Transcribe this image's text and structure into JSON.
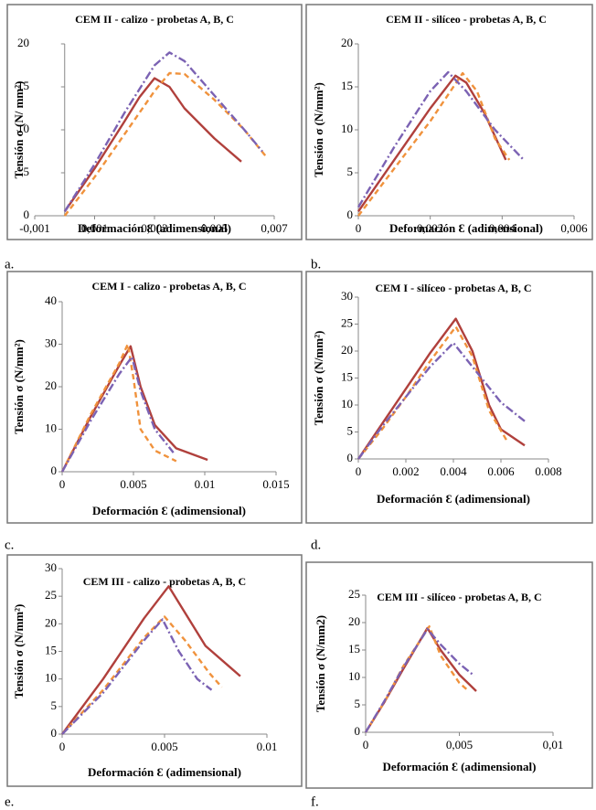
{
  "chart_data": [
    {
      "type": "line",
      "title": "CEM II - calizo - probetas A, B, C",
      "caption": "a.",
      "x_label": "Deformación Ɛ (adimensional)",
      "y_label": "Tensión σ (N/ mm²)",
      "xlim": [
        -0.001,
        0.007
      ],
      "xticks": [
        {
          "value": -0.001,
          "label": "-0,001"
        },
        {
          "value": 0.001,
          "label": "0,001"
        },
        {
          "value": 0.003,
          "label": "0,003"
        },
        {
          "value": 0.005,
          "label": "0,005"
        },
        {
          "value": 0.007,
          "label": "0,007"
        }
      ],
      "ylim": [
        0,
        20
      ],
      "yticks": [
        0,
        5,
        10,
        15,
        20
      ],
      "series": [
        {
          "color": "#b0403c",
          "dash": "solid",
          "x": [
            0,
            0.001,
            0.002,
            0.0025,
            0.003,
            0.0035,
            0.004,
            0.005,
            0.0059
          ],
          "values": [
            0.5,
            5.5,
            11,
            13.8,
            16,
            15,
            12.5,
            9,
            6.3
          ]
        },
        {
          "color": "#f0923c",
          "dash": "dashed",
          "x": [
            0,
            0.001,
            0.002,
            0.003,
            0.0035,
            0.004,
            0.005,
            0.006,
            0.0067
          ],
          "values": [
            0,
            4.5,
            9.5,
            14.5,
            16.6,
            16.5,
            13.5,
            10,
            7
          ]
        },
        {
          "color": "#7b62b3",
          "dash": "dashdot",
          "x": [
            0,
            0.001,
            0.002,
            0.003,
            0.0035,
            0.004,
            0.005,
            0.006,
            0.0066
          ],
          "values": [
            0.5,
            6,
            12,
            17.5,
            19,
            18,
            14,
            10,
            7.5
          ]
        }
      ]
    },
    {
      "type": "line",
      "title": "CEM II - silíceo - probetas A, B, C",
      "caption": "b.",
      "x_label": "Deformación Ɛ (adimensional)",
      "y_label": "Tensión σ (N/mm²)",
      "xlim": [
        0,
        0.006
      ],
      "xticks": [
        0,
        {
          "value": 0.002,
          "label": "0,002"
        },
        {
          "value": 0.004,
          "label": "0,004"
        },
        {
          "value": 0.006,
          "label": "0,006"
        }
      ],
      "ylim": [
        0,
        20
      ],
      "yticks": [
        0,
        5,
        10,
        15,
        20
      ],
      "series": [
        {
          "color": "#b0403c",
          "dash": "solid",
          "x": [
            0,
            0.001,
            0.002,
            0.0027,
            0.003,
            0.0035,
            0.0041
          ],
          "values": [
            0.5,
            6.5,
            12.5,
            16.3,
            15.5,
            12,
            6.5
          ]
        },
        {
          "color": "#f0923c",
          "dash": "dashed",
          "x": [
            0,
            0.001,
            0.002,
            0.0029,
            0.0033,
            0.0038,
            0.0042
          ],
          "values": [
            0,
            5.5,
            11,
            16.6,
            14.5,
            9,
            6.5
          ]
        },
        {
          "color": "#7b62b3",
          "dash": "dashdot",
          "x": [
            0,
            0.001,
            0.002,
            0.0025,
            0.003,
            0.0038,
            0.0046
          ],
          "values": [
            1,
            8,
            14.5,
            16.7,
            14.5,
            10,
            6.5
          ]
        }
      ]
    },
    {
      "type": "line",
      "title": "CEM I - calizo - probetas A, B, C",
      "caption": "c.",
      "x_label": "Deformación Ɛ (adimensional)",
      "y_label": "Tensión σ (N/mm²)",
      "xlim": [
        0,
        0.015
      ],
      "xticks": [
        0,
        0.005,
        0.01,
        0.015
      ],
      "ylim": [
        0,
        40
      ],
      "yticks": [
        0,
        10,
        20,
        30,
        40
      ],
      "series": [
        {
          "color": "#b0403c",
          "dash": "solid",
          "x": [
            0,
            0.002,
            0.004,
            0.0048,
            0.0055,
            0.0065,
            0.008,
            0.0102
          ],
          "values": [
            0,
            13,
            25,
            29.5,
            20,
            11,
            5.5,
            2.8
          ]
        },
        {
          "color": "#f0923c",
          "dash": "dashed",
          "x": [
            0,
            0.002,
            0.004,
            0.0046,
            0.005,
            0.0055,
            0.0065,
            0.008
          ],
          "values": [
            0,
            13.5,
            25.5,
            30,
            22,
            10,
            5,
            2.5
          ]
        },
        {
          "color": "#7b62b3",
          "dash": "dashdot",
          "x": [
            0,
            0.002,
            0.004,
            0.0049,
            0.0055,
            0.0065,
            0.0078
          ],
          "values": [
            0,
            12,
            23,
            27,
            19,
            10,
            4.5
          ]
        }
      ]
    },
    {
      "type": "line",
      "title": "CEM I - silíceo - probetas A, B, C",
      "caption": "d.",
      "x_label": "Deformación Ɛ (adimensional)",
      "y_label": "Tensión σ (N/mm²)",
      "xlim": [
        0,
        0.008
      ],
      "xticks": [
        0,
        0.002,
        0.004,
        0.006,
        0.008
      ],
      "ylim": [
        0,
        30
      ],
      "yticks": [
        0,
        5,
        10,
        15,
        20,
        25,
        30
      ],
      "series": [
        {
          "color": "#b0403c",
          "dash": "solid",
          "x": [
            0,
            0.001,
            0.002,
            0.003,
            0.0041,
            0.0048,
            0.0055,
            0.006,
            0.007
          ],
          "values": [
            0,
            6.5,
            13,
            19.5,
            26,
            20,
            10,
            5.5,
            2.5
          ]
        },
        {
          "color": "#f0923c",
          "dash": "dashed",
          "x": [
            0,
            0.001,
            0.002,
            0.003,
            0.0041,
            0.0048,
            0.0055,
            0.0063
          ],
          "values": [
            0,
            5.5,
            11.5,
            18,
            24.5,
            19,
            9,
            3
          ]
        },
        {
          "color": "#7b62b3",
          "dash": "dashdot",
          "x": [
            0,
            0.001,
            0.002,
            0.003,
            0.004,
            0.005,
            0.006,
            0.007
          ],
          "values": [
            0,
            6,
            11.5,
            17,
            21.5,
            16,
            10.5,
            7
          ]
        }
      ]
    },
    {
      "type": "line",
      "title": "CEM III - calizo - probetas A, B, C",
      "caption": "e.",
      "x_label": "Deformación Ɛ (adimensional)",
      "y_label": "Tensión σ (N/mm²)",
      "xlim": [
        0,
        0.01
      ],
      "xticks": [
        0,
        0.005,
        0.01
      ],
      "ylim": [
        0,
        30
      ],
      "yticks": [
        0,
        5,
        10,
        15,
        20,
        25,
        30
      ],
      "series": [
        {
          "color": "#b0403c",
          "dash": "solid",
          "x": [
            0,
            0.002,
            0.004,
            0.0052,
            0.006,
            0.007,
            0.0087
          ],
          "values": [
            0,
            10,
            21,
            26.8,
            22,
            16,
            10.5
          ]
        },
        {
          "color": "#f0923c",
          "dash": "dashed",
          "x": [
            0,
            0.002,
            0.004,
            0.005,
            0.006,
            0.0072,
            0.0078
          ],
          "values": [
            0,
            8,
            17.5,
            21.3,
            17,
            11,
            8.5
          ]
        },
        {
          "color": "#7b62b3",
          "dash": "dashdot",
          "x": [
            0,
            0.002,
            0.004,
            0.0049,
            0.0057,
            0.0066,
            0.0073
          ],
          "values": [
            0,
            7.5,
            17,
            20.8,
            15,
            10,
            8
          ]
        }
      ]
    },
    {
      "type": "line",
      "title": "CEM III - silíceo - probetas A, B, C",
      "caption": "f.",
      "x_label": "Deformación Ɛ (adimensional)",
      "y_label": "Tensión σ (N/mm2)",
      "xlim": [
        0,
        0.01
      ],
      "xticks": [
        0,
        {
          "value": 0.005,
          "label": "0,005"
        },
        {
          "value": 0.01,
          "label": "0,01"
        }
      ],
      "ylim": [
        0,
        25
      ],
      "yticks": [
        0,
        5,
        10,
        15,
        20,
        25
      ],
      "series": [
        {
          "color": "#b0403c",
          "dash": "solid",
          "x": [
            0,
            0.001,
            0.002,
            0.0033,
            0.004,
            0.005,
            0.0059
          ],
          "values": [
            0,
            5.5,
            11.5,
            19,
            15,
            10.5,
            7.5
          ]
        },
        {
          "color": "#f0923c",
          "dash": "dashed",
          "x": [
            0,
            0.001,
            0.002,
            0.0034,
            0.004,
            0.005,
            0.0055
          ],
          "values": [
            0,
            5.5,
            12,
            19.3,
            14,
            9,
            7.5
          ]
        },
        {
          "color": "#7b62b3",
          "dash": "dashdot",
          "x": [
            0,
            0.001,
            0.002,
            0.0033,
            0.004,
            0.005,
            0.0058
          ],
          "values": [
            0,
            5.7,
            11.8,
            18.8,
            16,
            12.5,
            10.3
          ]
        }
      ]
    }
  ]
}
